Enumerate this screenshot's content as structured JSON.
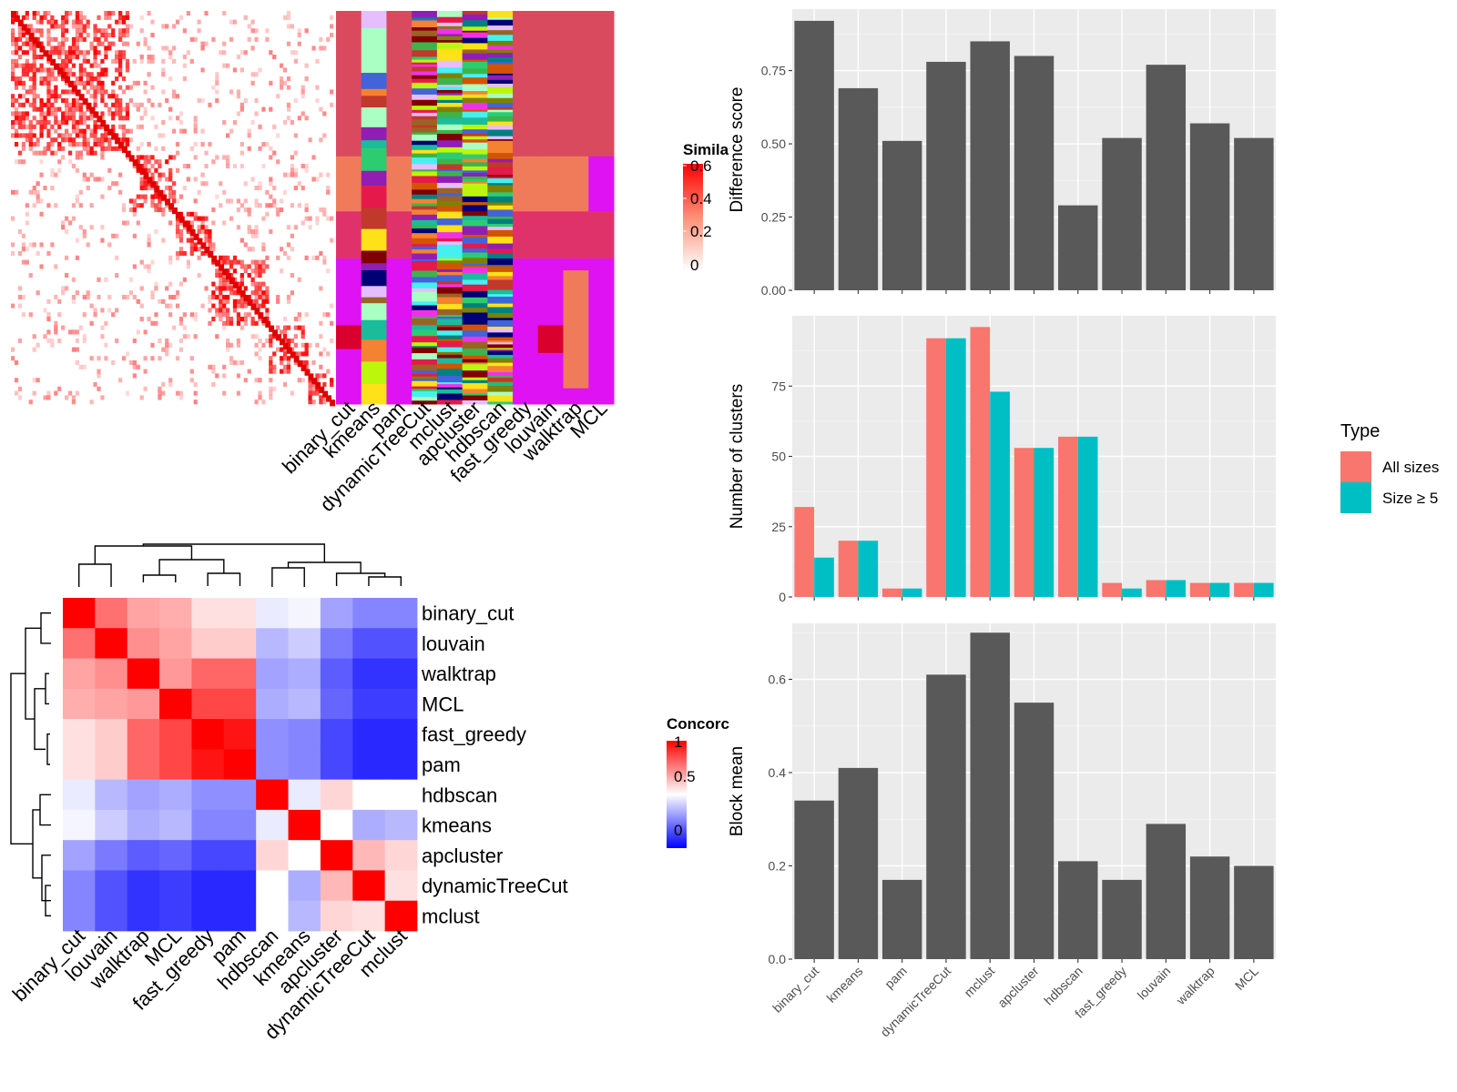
{
  "chart_data": [
    {
      "type": "heatmap",
      "name_hidden": true,
      "methods": [
        "binary_cut",
        "kmeans",
        "pam",
        "dynamicTreeCut",
        "mclust",
        "apcluster",
        "hdbscan",
        "fast_greedy",
        "louvain",
        "walktrap",
        "MCL"
      ],
      "legend": {
        "title": "Simila",
        "ticks": [
          "0.6",
          "0.4",
          "0.2",
          "0"
        ],
        "colors": {
          "high": "#ff0000",
          "low": "#ffffff"
        }
      }
    },
    {
      "type": "heatmap",
      "rows": [
        "binary_cut",
        "louvain",
        "walktrap",
        "MCL",
        "fast_greedy",
        "pam",
        "hdbscan",
        "kmeans",
        "apcluster",
        "dynamicTreeCut",
        "mclust"
      ],
      "cols": [
        "binary_cut",
        "louvain",
        "walktrap",
        "MCL",
        "fast_greedy",
        "pam",
        "hdbscan",
        "kmeans",
        "apcluster",
        "dynamicTreeCut",
        "mclust"
      ],
      "values": [
        [
          1.0,
          0.78,
          0.68,
          0.66,
          0.56,
          0.56,
          0.46,
          0.48,
          0.32,
          0.26,
          0.26
        ],
        [
          0.78,
          1.0,
          0.72,
          0.68,
          0.6,
          0.6,
          0.36,
          0.4,
          0.24,
          0.16,
          0.16
        ],
        [
          0.68,
          0.72,
          1.0,
          0.7,
          0.8,
          0.8,
          0.32,
          0.34,
          0.18,
          0.1,
          0.1
        ],
        [
          0.66,
          0.68,
          0.7,
          1.0,
          0.86,
          0.86,
          0.34,
          0.36,
          0.2,
          0.12,
          0.12
        ],
        [
          0.56,
          0.6,
          0.8,
          0.86,
          1.0,
          0.96,
          0.28,
          0.26,
          0.14,
          0.08,
          0.08
        ],
        [
          0.56,
          0.6,
          0.8,
          0.86,
          0.96,
          1.0,
          0.28,
          0.26,
          0.14,
          0.08,
          0.08
        ],
        [
          0.46,
          0.36,
          0.32,
          0.34,
          0.28,
          0.28,
          1.0,
          0.46,
          0.58,
          0.5,
          0.5
        ],
        [
          0.48,
          0.4,
          0.34,
          0.36,
          0.26,
          0.26,
          0.46,
          1.0,
          0.5,
          0.34,
          0.36
        ],
        [
          0.32,
          0.24,
          0.18,
          0.2,
          0.14,
          0.14,
          0.58,
          0.5,
          1.0,
          0.64,
          0.58
        ],
        [
          0.26,
          0.16,
          0.1,
          0.12,
          0.08,
          0.08,
          0.5,
          0.34,
          0.64,
          1.0,
          0.56
        ],
        [
          0.26,
          0.16,
          0.1,
          0.12,
          0.08,
          0.08,
          0.5,
          0.36,
          0.58,
          0.56,
          1.0
        ]
      ],
      "legend": {
        "title": "Concorc",
        "ticks": [
          "1",
          "0.5",
          "0"
        ],
        "colors": {
          "high": "#ff0000",
          "mid": "#ffffff",
          "low": "#0000ff"
        }
      }
    },
    {
      "type": "bar",
      "categories": [
        "binary_cut",
        "kmeans",
        "pam",
        "dynamicTreeCut",
        "mclust",
        "apcluster",
        "hdbscan",
        "fast_greedy",
        "louvain",
        "walktrap",
        "MCL"
      ],
      "values": [
        0.92,
        0.69,
        0.51,
        0.78,
        0.85,
        0.8,
        0.29,
        0.52,
        0.77,
        0.57,
        0.52
      ],
      "ylabel": "Difference score",
      "yticks": [
        "0.00",
        "0.25",
        "0.50",
        "0.75"
      ],
      "ylim": [
        0,
        0.96
      ]
    },
    {
      "type": "bar",
      "categories": [
        "binary_cut",
        "kmeans",
        "pam",
        "dynamicTreeCut",
        "mclust",
        "apcluster",
        "hdbscan",
        "fast_greedy",
        "louvain",
        "walktrap",
        "MCL"
      ],
      "series": [
        {
          "name": "All sizes",
          "values": [
            32,
            20,
            3,
            92,
            96,
            53,
            57,
            5,
            6,
            5,
            5
          ]
        },
        {
          "name": "Size ≥ 5",
          "values": [
            14,
            20,
            3,
            92,
            73,
            53,
            57,
            3,
            6,
            5,
            5
          ]
        }
      ],
      "ylabel": "Number of clusters",
      "yticks": [
        "0",
        "25",
        "50",
        "75"
      ],
      "ylim": [
        0,
        100
      ],
      "legend_title": "Type",
      "colors": {
        "All sizes": "#f8766d",
        "Size ≥ 5": "#00bfc4"
      }
    },
    {
      "type": "bar",
      "categories": [
        "binary_cut",
        "kmeans",
        "pam",
        "dynamicTreeCut",
        "mclust",
        "apcluster",
        "hdbscan",
        "fast_greedy",
        "louvain",
        "walktrap",
        "MCL"
      ],
      "values": [
        0.34,
        0.41,
        0.17,
        0.61,
        0.7,
        0.55,
        0.21,
        0.17,
        0.29,
        0.22,
        0.2
      ],
      "ylabel": "Block mean",
      "yticks": [
        "0.0",
        "0.2",
        "0.4",
        "0.6"
      ],
      "ylim": [
        0,
        0.72
      ]
    }
  ]
}
